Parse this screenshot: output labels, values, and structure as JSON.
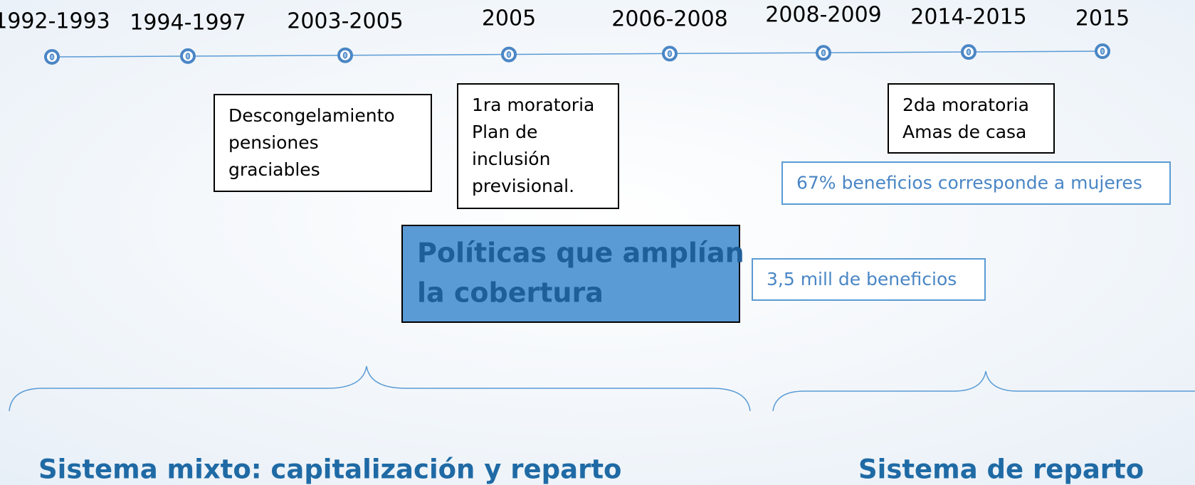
{
  "timeline": {
    "labels": [
      "1992-1993",
      "1994-1997",
      "2003-2005",
      "2005",
      "2006-2008",
      "2008-2009",
      "2014-2015",
      "2015"
    ]
  },
  "events": [
    {
      "lines": [
        "Descongelamiento",
        "pensiones",
        "graciables"
      ]
    },
    {
      "lines": [
        "1ra moratoria",
        "Plan de",
        "inclusión",
        "previsional."
      ]
    },
    {
      "lines": [
        "2da moratoria",
        "Amas de casa"
      ]
    }
  ],
  "notes": [
    "67% beneficios corresponde a mujeres",
    "3,5 mill de beneficios"
  ],
  "highlight": {
    "lines": [
      "Políticas que amplían",
      "la cobertura"
    ]
  },
  "periods": [
    "Sistema mixto: capitalización y reparto",
    "Sistema de reparto"
  ]
}
